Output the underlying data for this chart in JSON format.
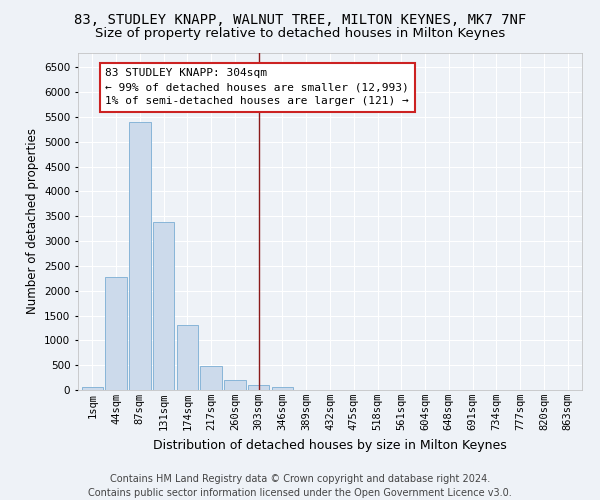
{
  "title": "83, STUDLEY KNAPP, WALNUT TREE, MILTON KEYNES, MK7 7NF",
  "subtitle": "Size of property relative to detached houses in Milton Keynes",
  "xlabel": "Distribution of detached houses by size in Milton Keynes",
  "ylabel": "Number of detached properties",
  "bar_color": "#ccdaeb",
  "bar_edge_color": "#7aadd4",
  "categories": [
    "1sqm",
    "44sqm",
    "87sqm",
    "131sqm",
    "174sqm",
    "217sqm",
    "260sqm",
    "303sqm",
    "346sqm",
    "389sqm",
    "432sqm",
    "475sqm",
    "518sqm",
    "561sqm",
    "604sqm",
    "648sqm",
    "691sqm",
    "734sqm",
    "777sqm",
    "820sqm",
    "863sqm"
  ],
  "values": [
    70,
    2280,
    5400,
    3380,
    1310,
    480,
    195,
    95,
    55,
    0,
    0,
    0,
    0,
    0,
    0,
    0,
    0,
    0,
    0,
    0,
    0
  ],
  "ylim": [
    0,
    6800
  ],
  "yticks": [
    0,
    500,
    1000,
    1500,
    2000,
    2500,
    3000,
    3500,
    4000,
    4500,
    5000,
    5500,
    6000,
    6500
  ],
  "vline_x_index": 7,
  "vline_color": "#8B1A1A",
  "annotation_text": "83 STUDLEY KNAPP: 304sqm\n← 99% of detached houses are smaller (12,993)\n1% of semi-detached houses are larger (121) →",
  "annotation_box_facecolor": "#ffffff",
  "annotation_box_edgecolor": "#cc2222",
  "footer_line1": "Contains HM Land Registry data © Crown copyright and database right 2024.",
  "footer_line2": "Contains public sector information licensed under the Open Government Licence v3.0.",
  "background_color": "#eef2f7",
  "grid_color": "#ffffff",
  "title_fontsize": 10,
  "subtitle_fontsize": 9.5,
  "ylabel_fontsize": 8.5,
  "xlabel_fontsize": 9,
  "tick_fontsize": 7.5,
  "footer_fontsize": 7,
  "annotation_fontsize": 8
}
